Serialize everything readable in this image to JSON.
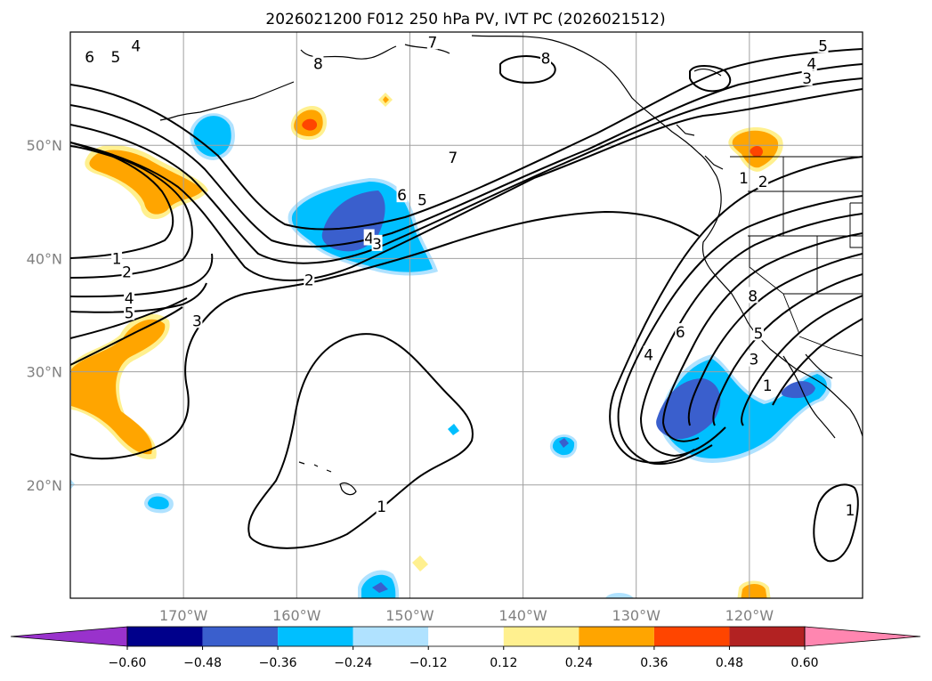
{
  "chart_data": {
    "type": "contour_map",
    "title": "2026021200 F012 250 hPa PV, IVT PC (2026021512)",
    "x_axis": {
      "label": "",
      "range": [
        -180,
        -110
      ],
      "ticks": [
        -170,
        -160,
        -150,
        -140,
        -130,
        -120
      ],
      "tick_labels": [
        "170°W",
        "160°W",
        "150°W",
        "140°W",
        "130°W",
        "120°W"
      ]
    },
    "y_axis": {
      "label": "",
      "range": [
        10,
        60
      ],
      "ticks": [
        20,
        30,
        40,
        50
      ],
      "tick_labels": [
        "20°N",
        "30°N",
        "40°N",
        "50°N"
      ]
    },
    "grid": true,
    "colorbar": {
      "orientation": "horizontal",
      "position": "bottom",
      "extend": "both",
      "levels": [
        -0.6,
        -0.48,
        -0.36,
        -0.24,
        -0.12,
        0.12,
        0.24,
        0.36,
        0.48,
        0.6
      ],
      "level_labels": [
        "−0.60",
        "−0.48",
        "−0.36",
        "−0.24",
        "−0.12",
        "0.12",
        "0.24",
        "0.36",
        "0.48",
        "0.60"
      ],
      "colors": [
        "#9932cc",
        "#00008b",
        "#3a5fcd",
        "#00bfff",
        "#b0e2ff",
        "#ffffff",
        "#fff08f",
        "#ffa500",
        "#ff4500",
        "#b22222",
        "#ff86b0"
      ]
    },
    "pv_contour_labels": [
      {
        "text": "4",
        "lon": -174.2,
        "lat": 58.8
      },
      {
        "text": "5",
        "lon": -176,
        "lat": 57.8
      },
      {
        "text": "6",
        "lon": -178.3,
        "lat": 57.8
      },
      {
        "text": "8",
        "lon": -158.1,
        "lat": 57.2
      },
      {
        "text": "7",
        "lon": -148,
        "lat": 59.1
      },
      {
        "text": "8",
        "lon": -138,
        "lat": 57.7
      },
      {
        "text": "5",
        "lon": -113.5,
        "lat": 58.8
      },
      {
        "text": "4",
        "lon": -114.5,
        "lat": 57.2
      },
      {
        "text": "3",
        "lon": -114.9,
        "lat": 55.9
      },
      {
        "text": "7",
        "lon": -146.2,
        "lat": 48.9
      },
      {
        "text": "6",
        "lon": -150.7,
        "lat": 45.6
      },
      {
        "text": "5",
        "lon": -148.9,
        "lat": 45.2
      },
      {
        "text": "4",
        "lon": -153.6,
        "lat": 41.8
      },
      {
        "text": "3",
        "lon": -152.9,
        "lat": 41.3
      },
      {
        "text": "2",
        "lon": -158.9,
        "lat": 38.1
      },
      {
        "text": "1",
        "lon": -175.9,
        "lat": 40
      },
      {
        "text": "2",
        "lon": -175,
        "lat": 38.8
      },
      {
        "text": "4",
        "lon": -174.8,
        "lat": 36.5
      },
      {
        "text": "5",
        "lon": -174.8,
        "lat": 35.2
      },
      {
        "text": "3",
        "lon": -168.8,
        "lat": 34.5
      },
      {
        "text": "1",
        "lon": -120.5,
        "lat": 47.1
      },
      {
        "text": "2",
        "lon": -118.8,
        "lat": 46.8
      },
      {
        "text": "8",
        "lon": -119.7,
        "lat": 36.7
      },
      {
        "text": "6",
        "lon": -126.1,
        "lat": 33.5
      },
      {
        "text": "4",
        "lon": -128.9,
        "lat": 31.5
      },
      {
        "text": "5",
        "lon": -119.2,
        "lat": 33.4
      },
      {
        "text": "3",
        "lon": -119.6,
        "lat": 31.1
      },
      {
        "text": "1",
        "lon": -118.4,
        "lat": 28.8
      },
      {
        "text": "1",
        "lon": -152.5,
        "lat": 18.1
      },
      {
        "text": "1",
        "lon": -111.1,
        "lat": 17.8
      }
    ],
    "ivt_pc_regions": [
      {
        "sign": "negative",
        "min_level": -0.36,
        "lon_range": [
          -156.5,
          -147
        ],
        "lat_range": [
          38.5,
          45.3
        ],
        "core": "-0.48"
      },
      {
        "sign": "negative",
        "min_level": -0.24,
        "lon_range": [
          -171,
          -166.5
        ],
        "lat_range": [
          46.8,
          51.2
        ],
        "core": "-0.36"
      },
      {
        "sign": "negative",
        "min_level": -0.36,
        "lon_range": [
          -128.7,
          -115.5
        ],
        "lat_range": [
          22,
          30.8
        ],
        "core": "-0.48"
      },
      {
        "sign": "negative",
        "min_level": -0.24,
        "lon_range": [
          -136.4,
          -134
        ],
        "lat_range": [
          22.5,
          24.5
        ],
        "core": "-0.36"
      },
      {
        "sign": "negative",
        "min_level": -0.24,
        "lon_range": [
          -153.2,
          -148.5
        ],
        "lat_range": [
          10,
          12.3
        ],
        "core": "-0.36"
      },
      {
        "sign": "negative",
        "min_level": -0.24,
        "lon_range": [
          -173.2,
          -170.4
        ],
        "lat_range": [
          17.8,
          19.7
        ],
        "core": "-0.24"
      },
      {
        "sign": "positive",
        "min_level": 0.24,
        "lon_range": [
          -178.7,
          -168.5
        ],
        "lat_range": [
          42.5,
          52.4
        ],
        "core": "0.36"
      },
      {
        "sign": "positive",
        "min_level": 0.24,
        "lon_range": [
          -180,
          -170.5
        ],
        "lat_range": [
          24.2,
          35.7
        ],
        "core": "0.36"
      },
      {
        "sign": "positive",
        "min_level": 0.24,
        "lon_range": [
          -160.2,
          -157.2
        ],
        "lat_range": [
          48.6,
          51.5
        ],
        "core": "0.36"
      },
      {
        "sign": "positive",
        "min_level": 0.24,
        "lon_range": [
          -122,
          -117.3
        ],
        "lat_range": [
          45.2,
          49.8
        ],
        "core": "0.36"
      },
      {
        "sign": "positive",
        "min_level": 0.24,
        "lon_range": [
          -121.9,
          -119.6
        ],
        "lat_range": [
          10,
          11.5
        ],
        "core": "0.24"
      }
    ]
  }
}
